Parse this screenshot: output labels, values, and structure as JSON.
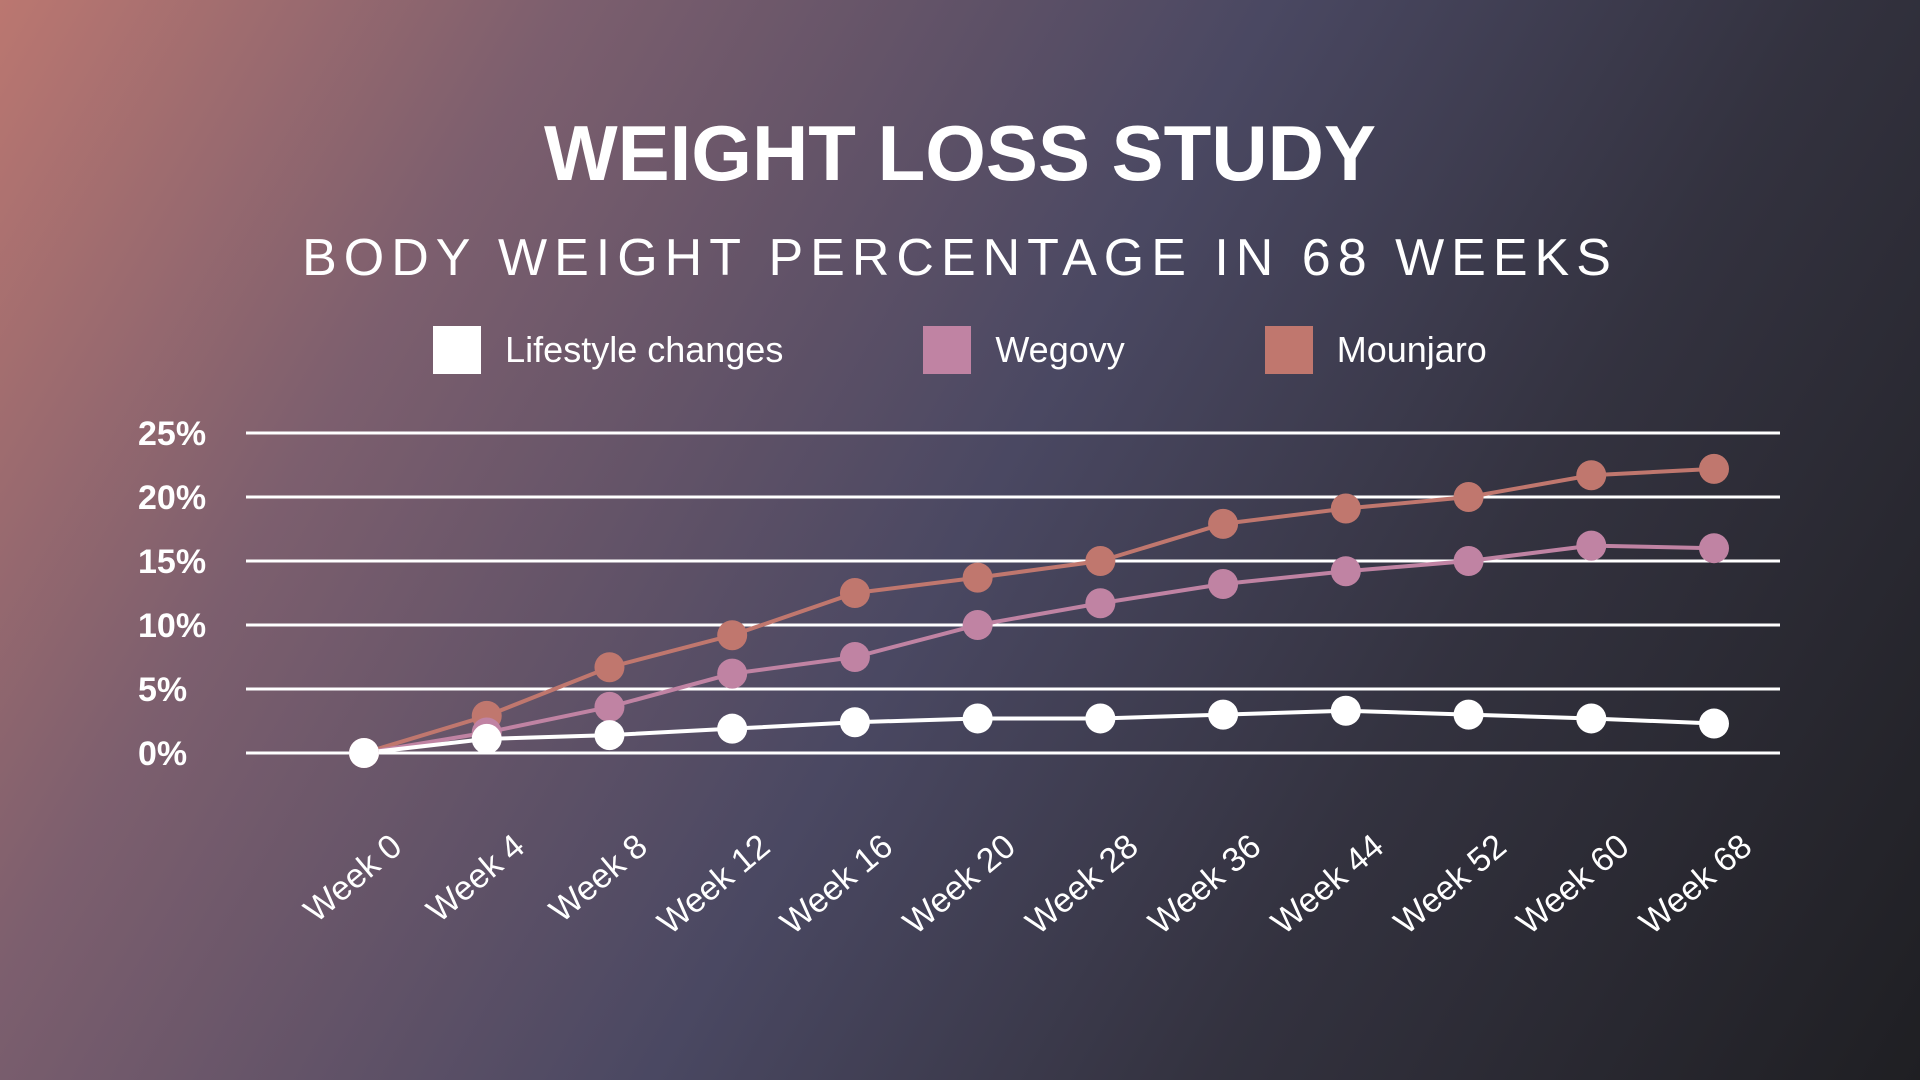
{
  "chart_data": {
    "type": "line",
    "title": "WEIGHT LOSS STUDY",
    "subtitle": "BODY WEIGHT PERCENTAGE IN 68 WEEKS",
    "categories": [
      "Week 0",
      "Week 4",
      "Week 8",
      "Week 12",
      "Week 16",
      "Week 20",
      "Week 28",
      "Week 36",
      "Week 44",
      "Week 52",
      "Week 60",
      "Week 68"
    ],
    "yticks": [
      "0%",
      "5%",
      "10%",
      "15%",
      "20%",
      "25%"
    ],
    "ylim": [
      0,
      25
    ],
    "grid": true,
    "legend": "top",
    "series": [
      {
        "name": "Lifestyle changes",
        "color": "#ffffff",
        "values": [
          0,
          1.1,
          1.4,
          1.9,
          2.4,
          2.7,
          2.7,
          3.0,
          3.3,
          3.0,
          2.7,
          2.3
        ]
      },
      {
        "name": "Wegovy",
        "color": "#c083a3",
        "values": [
          0,
          1.6,
          3.6,
          6.2,
          7.5,
          10.0,
          11.7,
          13.2,
          14.2,
          15.0,
          16.2,
          16.0
        ]
      },
      {
        "name": "Mounjaro",
        "color": "#c0776e",
        "values": [
          0,
          2.9,
          6.7,
          9.2,
          12.5,
          13.7,
          15.0,
          17.9,
          19.1,
          20.0,
          21.7,
          22.2
        ]
      }
    ]
  }
}
